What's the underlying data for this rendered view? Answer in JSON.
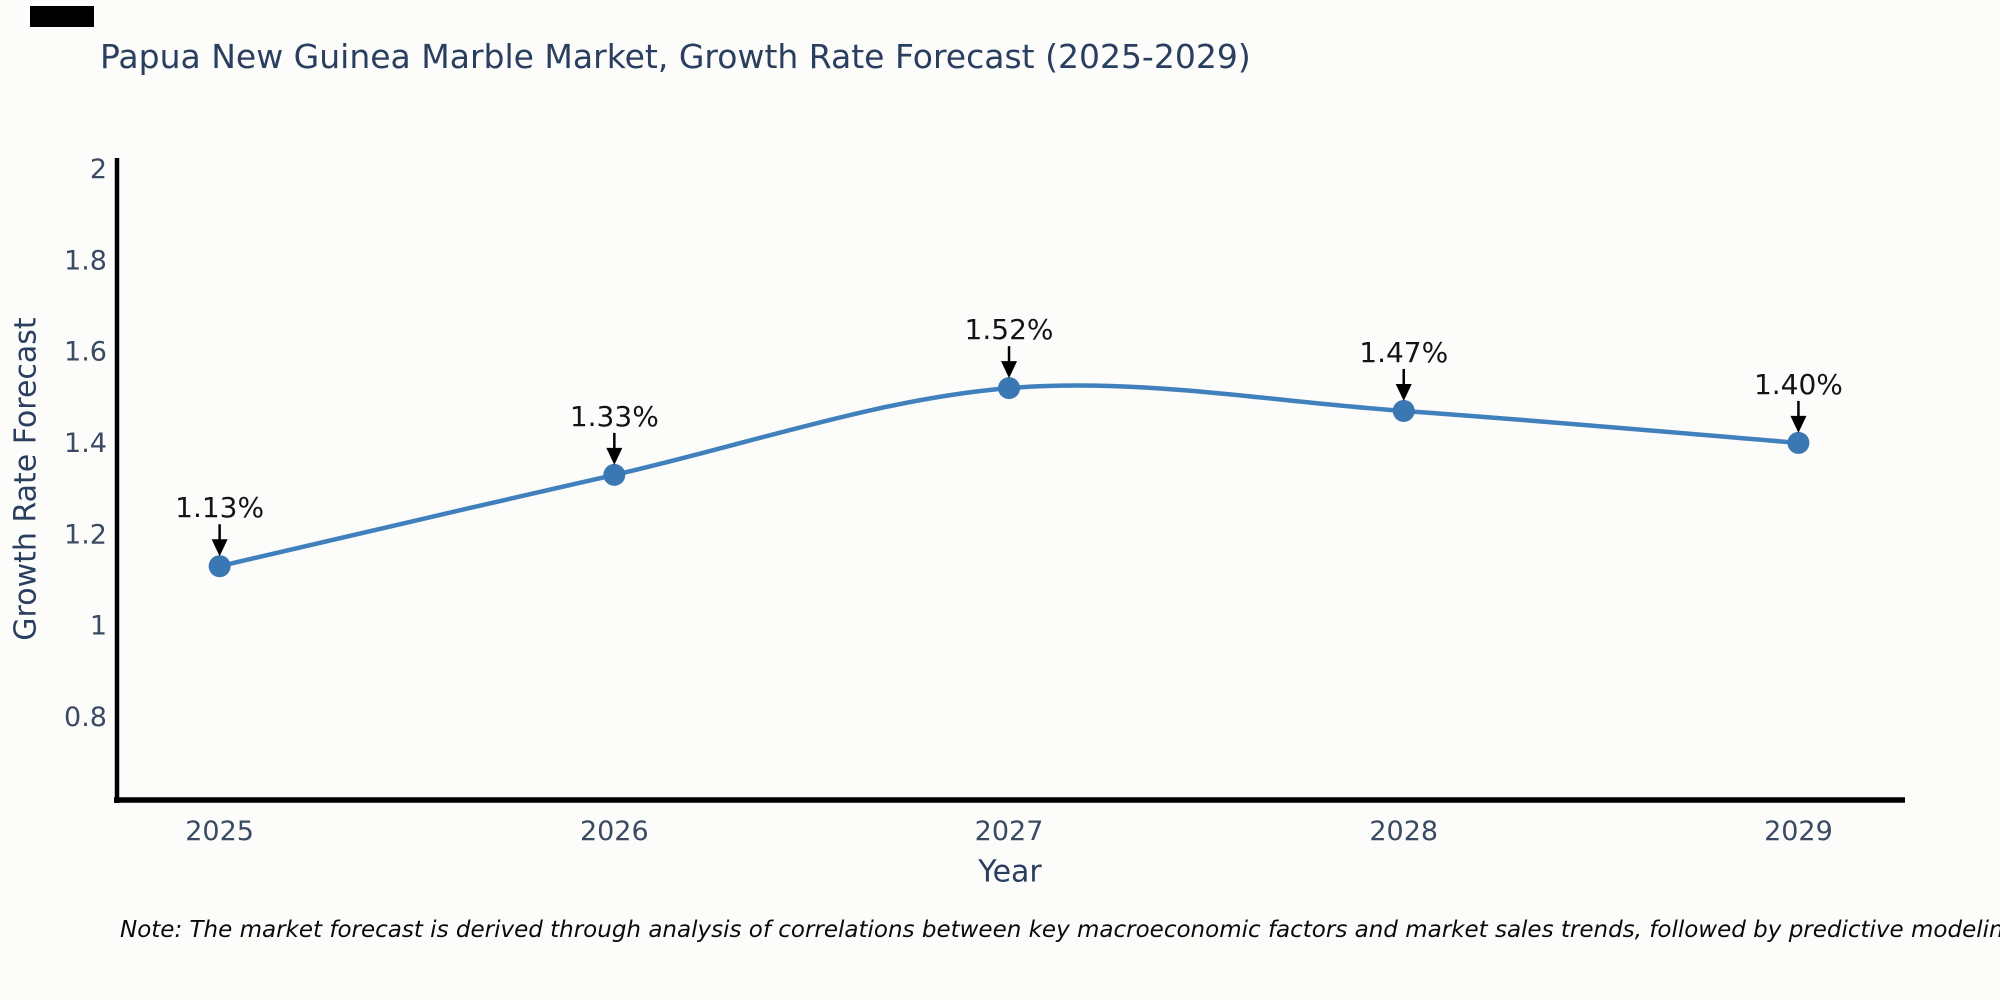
{
  "title": "Papua New Guinea Marble Market, Growth Rate Forecast (2025-2029)",
  "note": "Note: The market forecast is derived through analysis of correlations between key macroeconomic factors and market sales trends, followed by predictive modeling to project future sales",
  "chart_data": {
    "type": "line",
    "title": "Papua New Guinea Marble Market, Growth Rate Forecast (2025-2029)",
    "xlabel": "Year",
    "ylabel": "Growth Rate Forecast",
    "categories": [
      2025,
      2026,
      2027,
      2028,
      2029
    ],
    "values": [
      1.13,
      1.33,
      1.52,
      1.47,
      1.4
    ],
    "point_labels": [
      "1.13%",
      "1.33%",
      "1.52%",
      "1.47%",
      "1.40%"
    ],
    "yticks": [
      0.8,
      1,
      1.2,
      1.4,
      1.6,
      1.8,
      2
    ],
    "ylim": [
      0.618,
      2.024
    ],
    "xlim": [
      2024.74,
      2029.27
    ],
    "grid": false,
    "legend": false,
    "line_shape": "spline",
    "colors": {
      "line": "#4080bd",
      "marker": "#3a77b3",
      "annotation": "#141414",
      "arrow": "#000000",
      "axis": "#000000",
      "tick_label": "#3b4a63",
      "heading": "#2a3f5f"
    }
  }
}
